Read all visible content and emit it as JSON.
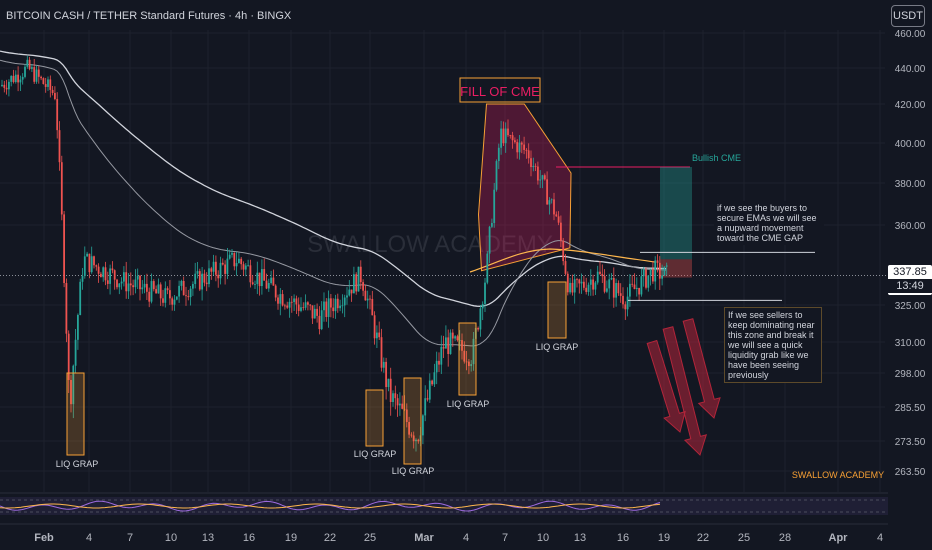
{
  "header": {
    "title": "BITCOIN CASH / TETHER Standard Futures · 4h · BINGX",
    "currency_button": "USDT"
  },
  "price_label": {
    "price": "337.85",
    "countdown": "13:49"
  },
  "watermark": "SWALLOW ACADEMY",
  "brand_footer": "SWALLOW ACADEMY",
  "annotations": {
    "fill_of_cme": "FILL OF CME",
    "bullish_cme": "Bullish CME",
    "buyers_note": "if we see the buyers to secure EMAs we will see a nupward movement toward the CME GAP",
    "sellers_note": "If we see sellers to keep dominating near this zone and break it we will see a quick liquidity grab like we have been seeing previously",
    "liq_labels": [
      "LIQ GRAP",
      "LIQ GRAP",
      "LIQ GRAP",
      "LIQ GRAP",
      "LIQ GRAP"
    ]
  },
  "colors": {
    "background": "#131722",
    "up_candle": "#26a69a",
    "down_candle": "#ef5350",
    "liq_box": "#f7a035",
    "cme_zone": "#e91e63",
    "ema_white": "#d1d4dc",
    "ema_orange": "#ffb74d",
    "arrow_red": "#b2253a"
  },
  "chart_data": {
    "type": "candlestick",
    "symbol": "BITCOIN CASH / TETHER Standard Futures",
    "interval": "4h",
    "exchange": "BINGX",
    "y_axis_ticks": [
      460.0,
      440.0,
      420.0,
      400.0,
      380.0,
      360.0,
      325.0,
      310.0,
      298.0,
      285.5,
      273.5,
      263.5
    ],
    "x_axis_ticks": [
      "Feb",
      "4",
      "7",
      "10",
      "13",
      "16",
      "19",
      "22",
      "25",
      "Mar",
      "4",
      "7",
      "10",
      "13",
      "16",
      "19",
      "22",
      "25",
      "28",
      "Apr",
      "4"
    ],
    "last_price": 337.85,
    "approx_close_path": [
      {
        "x": "Jan 29",
        "y": 430
      },
      {
        "x": "Jan 31",
        "y": 440
      },
      {
        "x": "Feb 2",
        "y": 425
      },
      {
        "x": "Feb 3",
        "y": 285
      },
      {
        "x": "Feb 4",
        "y": 345
      },
      {
        "x": "Feb 7",
        "y": 335
      },
      {
        "x": "Feb 10",
        "y": 328
      },
      {
        "x": "Feb 13",
        "y": 338
      },
      {
        "x": "Feb 15",
        "y": 345
      },
      {
        "x": "Feb 18",
        "y": 330
      },
      {
        "x": "Feb 21",
        "y": 320
      },
      {
        "x": "Feb 24",
        "y": 338
      },
      {
        "x": "Feb 26",
        "y": 290
      },
      {
        "x": "Feb 28",
        "y": 275
      },
      {
        "x": "Mar 2",
        "y": 310
      },
      {
        "x": "Mar 4",
        "y": 305
      },
      {
        "x": "Mar 5",
        "y": 340
      },
      {
        "x": "Mar 6",
        "y": 405
      },
      {
        "x": "Mar 8",
        "y": 395
      },
      {
        "x": "Mar 10",
        "y": 365
      },
      {
        "x": "Mar 11",
        "y": 330
      },
      {
        "x": "Mar 13",
        "y": 338
      },
      {
        "x": "Mar 15",
        "y": 328
      },
      {
        "x": "Mar 17",
        "y": 340
      },
      {
        "x": "Mar 18",
        "y": 337.85
      }
    ]
  }
}
